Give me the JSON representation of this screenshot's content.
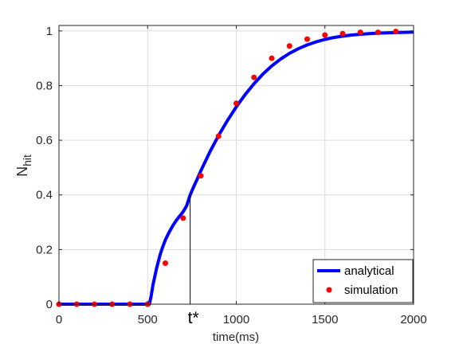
{
  "chart_data": {
    "type": "line",
    "xlabel": "time(ms)",
    "ylabel_main": "N",
    "ylabel_sub": "hit",
    "xlim": [
      0,
      2000
    ],
    "ylim": [
      0,
      1.02
    ],
    "xticks": [
      0,
      500,
      1000,
      1500,
      2000
    ],
    "xtick_labels": [
      "0",
      "500",
      "1000",
      "1500",
      "2000"
    ],
    "yticks": [
      0,
      0.2,
      0.4,
      0.6,
      0.8,
      1
    ],
    "ytick_labels": [
      "0",
      "0.2",
      "0.4",
      "0.6",
      "0.8",
      "1"
    ],
    "grid": true,
    "legend_position": "bottom-right",
    "annotation": {
      "text": "t*",
      "x": 740,
      "y_top": 0.4
    },
    "series": [
      {
        "name": "analytical",
        "style": "line",
        "color": "#0000ff",
        "x": [
          0,
          500,
          510,
          520,
          530,
          540,
          550,
          560,
          570,
          580,
          590,
          600,
          620,
          640,
          660,
          680,
          700,
          720,
          740,
          760,
          780,
          800,
          850,
          900,
          950,
          1000,
          1050,
          1100,
          1150,
          1200,
          1250,
          1300,
          1350,
          1400,
          1450,
          1500,
          1550,
          1600,
          1650,
          1700,
          1750,
          1800,
          1850,
          1900,
          1950,
          2000
        ],
        "y": [
          0,
          0,
          0,
          0.03,
          0.07,
          0.1,
          0.13,
          0.155,
          0.18,
          0.2,
          0.218,
          0.235,
          0.262,
          0.285,
          0.305,
          0.322,
          0.338,
          0.36,
          0.4,
          0.43,
          0.458,
          0.488,
          0.556,
          0.617,
          0.672,
          0.722,
          0.767,
          0.807,
          0.842,
          0.872,
          0.897,
          0.918,
          0.935,
          0.949,
          0.96,
          0.969,
          0.976,
          0.981,
          0.985,
          0.988,
          0.99,
          0.992,
          0.993,
          0.994,
          0.995,
          0.996
        ]
      },
      {
        "name": "simulation",
        "style": "markers",
        "color": "#ff0000",
        "x": [
          0,
          100,
          200,
          300,
          400,
          500,
          600,
          700,
          800,
          900,
          1000,
          1100,
          1200,
          1300,
          1400,
          1500,
          1600,
          1700,
          1800,
          1900
        ],
        "y": [
          0,
          0,
          0,
          0,
          0,
          0,
          0.15,
          0.315,
          0.47,
          0.615,
          0.735,
          0.83,
          0.9,
          0.945,
          0.97,
          0.985,
          0.99,
          0.995,
          0.995,
          0.998
        ]
      }
    ]
  }
}
